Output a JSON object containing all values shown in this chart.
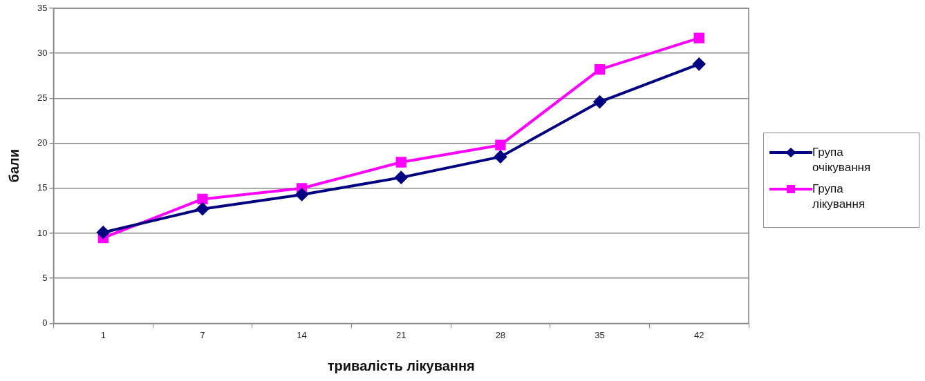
{
  "chart_data": {
    "type": "line",
    "xlabel": "тривалість лікування",
    "ylabel": "бали",
    "categories": [
      "1",
      "7",
      "14",
      "21",
      "28",
      "35",
      "42"
    ],
    "series": [
      {
        "name": "Група очікування",
        "color": "#000080",
        "marker": "diamond",
        "values": [
          10.1,
          12.7,
          14.3,
          16.2,
          18.5,
          24.6,
          28.8
        ]
      },
      {
        "name": "Група лікування",
        "color": "#ff00ff",
        "marker": "square",
        "values": [
          9.5,
          13.8,
          15.0,
          17.9,
          19.8,
          28.2,
          31.7
        ]
      }
    ],
    "ylim": [
      0,
      35
    ],
    "yticks": [
      0,
      5,
      10,
      15,
      20,
      25,
      30,
      35
    ],
    "grid": "y",
    "legend": "right",
    "line_style": "solid"
  }
}
